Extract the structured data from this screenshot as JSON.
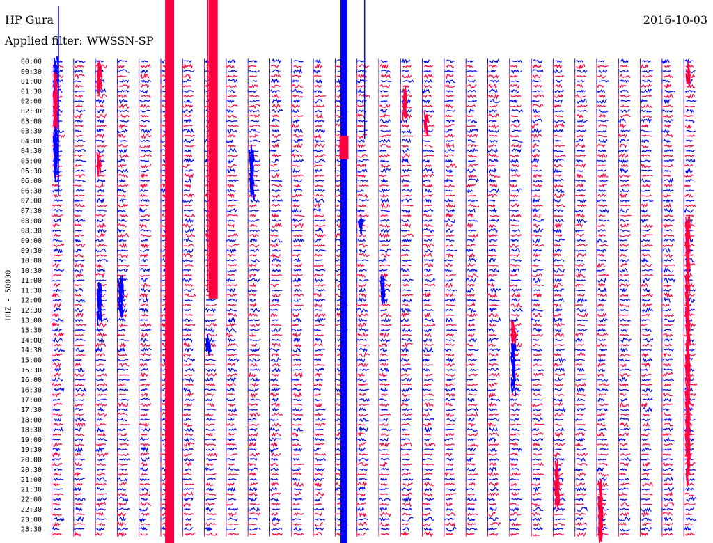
{
  "header": {
    "station": "HP Gura",
    "filter_label": "Applied filter:",
    "filter_value": "WWSSN-SP",
    "date": "2016-10-03"
  },
  "channel_label": "HHZ - 50000",
  "colors": {
    "trace_a": "#0000ff",
    "trace_b": "#ff0040",
    "text": "#000000",
    "background": "#ffffff"
  },
  "chart_data": {
    "type": "helicorder",
    "title": "HP Gura",
    "subtitle": "Applied filter: WWSSN-SP",
    "date": "2016-10-03",
    "ylabel": "HHZ - 50000",
    "row_minutes": 15,
    "row_count": 96,
    "column_count": 30,
    "minutes_per_column": 0.5,
    "y_tick_labels": [
      "00:00",
      "00:30",
      "01:00",
      "01:30",
      "02:00",
      "02:30",
      "03:00",
      "03:30",
      "04:00",
      "04:30",
      "05:00",
      "05:30",
      "06:00",
      "06:30",
      "07:00",
      "07:30",
      "08:00",
      "08:30",
      "09:00",
      "09:30",
      "10:00",
      "10:30",
      "11:00",
      "11:30",
      "12:00",
      "12:30",
      "13:00",
      "13:30",
      "14:00",
      "14:30",
      "15:00",
      "15:30",
      "16:00",
      "16:30",
      "17:00",
      "17:30",
      "18:00",
      "18:30",
      "19:00",
      "19:30",
      "20:00",
      "20:30",
      "21:00",
      "21:30",
      "22:00",
      "22:30",
      "23:00",
      "23:30"
    ],
    "series": [
      {
        "color": "#0000ff",
        "rows": "even"
      },
      {
        "color": "#ff0040",
        "rows": "odd"
      }
    ],
    "saturated_columns": [
      {
        "column": 5,
        "color": "#ff0040",
        "from": "00:00",
        "to": "23:59"
      },
      {
        "column": 13,
        "color": "#0000ff",
        "from": "00:00",
        "to": "23:59"
      },
      {
        "column": 7,
        "color": "#ff0040",
        "from": "00:00",
        "to": "11:30"
      },
      {
        "column": 13,
        "color": "#ff0040",
        "from": "03:45",
        "to": "04:30"
      }
    ],
    "events": [
      {
        "column": 0,
        "from": "00:00",
        "to": "05:45",
        "color": "#0000ff"
      },
      {
        "column": 0,
        "from": "00:45",
        "to": "03:15",
        "color": "#ff0040"
      },
      {
        "column": 2,
        "from": "00:15",
        "to": "01:30",
        "color": "#ff0040"
      },
      {
        "column": 2,
        "from": "04:45",
        "to": "05:30",
        "color": "#ff0040"
      },
      {
        "column": 2,
        "from": "11:15",
        "to": "13:00",
        "color": "#0000ff"
      },
      {
        "column": 3,
        "from": "11:00",
        "to": "12:45",
        "color": "#0000ff"
      },
      {
        "column": 7,
        "from": "14:00",
        "to": "14:30",
        "color": "#0000ff"
      },
      {
        "column": 9,
        "from": "04:30",
        "to": "06:45",
        "color": "#0000ff"
      },
      {
        "column": 14,
        "from": "08:00",
        "to": "08:30",
        "color": "#0000ff"
      },
      {
        "column": 15,
        "from": "11:00",
        "to": "12:00",
        "color": "#0000ff"
      },
      {
        "column": 16,
        "from": "01:30",
        "to": "02:45",
        "color": "#ff0040"
      },
      {
        "column": 17,
        "from": "02:45",
        "to": "03:30",
        "color": "#ff0040"
      },
      {
        "column": 21,
        "from": "14:15",
        "to": "15:45",
        "color": "#0000ff"
      },
      {
        "column": 21,
        "from": "16:00",
        "to": "16:30",
        "color": "#0000ff"
      },
      {
        "column": 21,
        "from": "13:15",
        "to": "14:00",
        "color": "#ff0040"
      },
      {
        "column": 23,
        "from": "20:15",
        "to": "22:15",
        "color": "#ff0040"
      },
      {
        "column": 25,
        "from": "21:15",
        "to": "23:59",
        "color": "#ff0040"
      },
      {
        "column": 29,
        "from": "08:00",
        "to": "21:00",
        "color": "#ff0040"
      },
      {
        "column": 29,
        "from": "00:15",
        "to": "01:00",
        "color": "#ff0040"
      }
    ]
  }
}
